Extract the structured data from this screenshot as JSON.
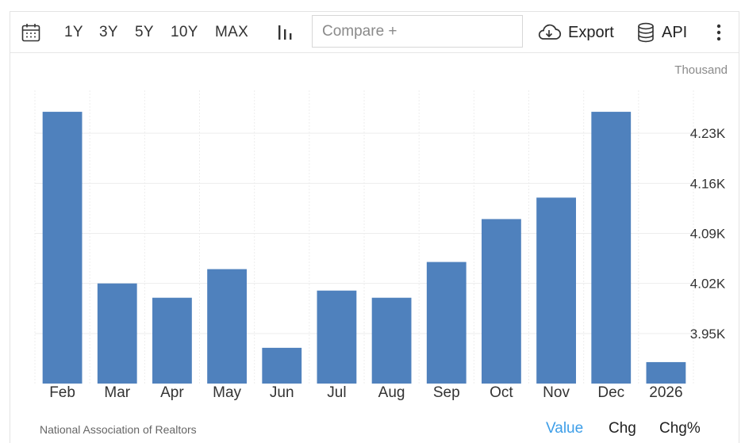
{
  "toolbar": {
    "calendar_icon": "calendar-icon",
    "ranges": [
      "1Y",
      "3Y",
      "5Y",
      "10Y",
      "MAX"
    ],
    "chart_type_icon": "bar-chart-icon",
    "compare_placeholder": "Compare +",
    "export_label": "Export",
    "api_label": "API",
    "more_icon": "more-vertical-icon"
  },
  "unit_label": "Thousand",
  "footer": {
    "source": "National Association of Realtors",
    "modes": [
      "Value",
      "Chg",
      "Chg%"
    ],
    "active_mode": "Value"
  },
  "colors": {
    "bar": "#4f81bd",
    "active_mode": "#3d9ee8",
    "grid": "#ededed"
  },
  "chart_data": {
    "type": "bar",
    "categories": [
      "Feb",
      "Mar",
      "Apr",
      "May",
      "Jun",
      "Jul",
      "Aug",
      "Sep",
      "Oct",
      "Nov",
      "Dec",
      "2026"
    ],
    "values": [
      4.26,
      4.02,
      4.0,
      4.04,
      3.93,
      4.01,
      4.0,
      4.05,
      4.11,
      4.14,
      4.26,
      3.91
    ],
    "value_format": "K",
    "ylim": [
      3.88,
      4.29
    ],
    "yticks": [
      3.95,
      4.02,
      4.09,
      4.16,
      4.23
    ],
    "ytick_labels": [
      "3.95K",
      "4.02K",
      "4.09K",
      "4.16K",
      "4.23K"
    ],
    "y_axis_position": "right",
    "grid": true,
    "legend": "none"
  }
}
